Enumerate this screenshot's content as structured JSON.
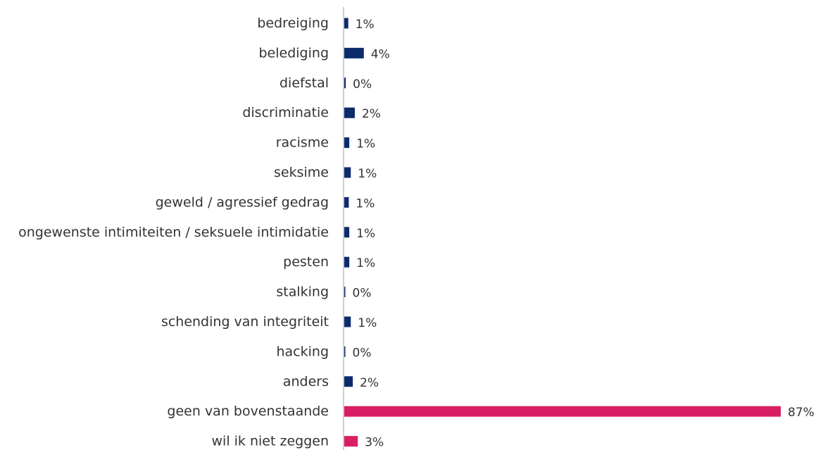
{
  "chart_data": {
    "type": "bar",
    "orientation": "horizontal",
    "title": "",
    "xlabel": "",
    "ylabel": "",
    "xlim": [
      0,
      87
    ],
    "grid": false,
    "legend": "none",
    "categories": [
      "bedreiging",
      "belediging",
      "diefstal",
      "discriminatie",
      "racisme",
      "seksime",
      "geweld / agressief gedrag",
      "ongewenste intimiteiten / seksuele intimidatie",
      "pesten",
      "stalking",
      "schending van integriteit",
      "hacking",
      "anders",
      "geen van bovenstaande",
      "wil ik niet zeggen"
    ],
    "values": [
      0.8,
      3.9,
      0.3,
      2.1,
      1.0,
      1.3,
      0.9,
      1.0,
      1.0,
      0.2,
      1.3,
      0.2,
      1.7,
      87,
      2.7
    ],
    "value_labels": [
      "1%",
      "4%",
      "0%",
      "2%",
      "1%",
      "1%",
      "1%",
      "1%",
      "1%",
      "0%",
      "1%",
      "0%",
      "2%",
      "87%",
      "3%"
    ],
    "bar_colors": [
      "#0c2b6b",
      "#0c2b6b",
      "#0c2b6b",
      "#0c2b6b",
      "#0c2b6b",
      "#0c2b6b",
      "#0c2b6b",
      "#0c2b6b",
      "#0c2b6b",
      "#0c2b6b",
      "#0c2b6b",
      "#0c2b6b",
      "#0c2b6b",
      "#d81f63",
      "#d81f63"
    ],
    "axis_color": "#9e9e9e"
  }
}
